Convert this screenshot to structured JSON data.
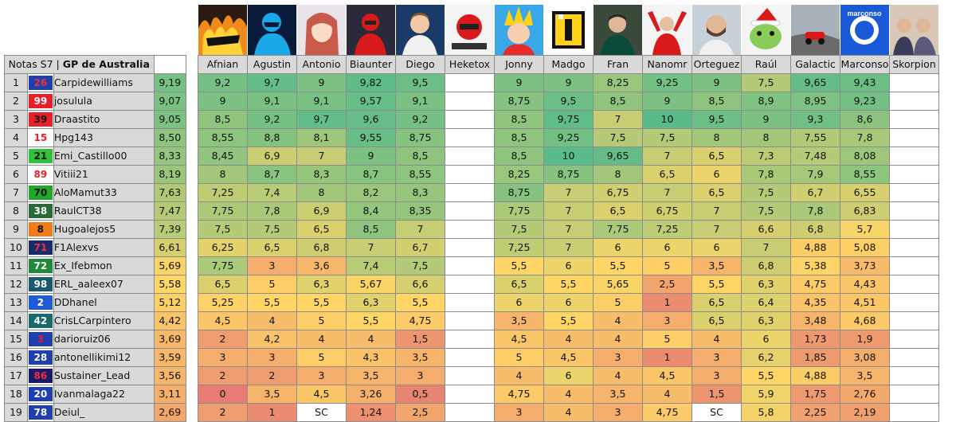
{
  "header_label_prefix": "Notas S7 | ",
  "header_label_gp": "GP de Australia",
  "judges": [
    "Afnian",
    "Agustin",
    "Antonio",
    "Biaunter",
    "Diego",
    "Heketox",
    "Jonny",
    "Madgo",
    "Fran",
    "Nanomr",
    "Orteguez",
    "Raúl",
    "Galactic",
    "Marconso",
    "Skorpion"
  ],
  "avatar_text": "marconso",
  "colors": {
    "header_bg": "#d9d9d9",
    "scale_low": "#e67c73",
    "scale_mid": "#ffd666",
    "scale_high": "#57bb8a"
  },
  "rows": [
    {
      "pos": "1",
      "num": "26",
      "num_bg": "#1f3fb0",
      "num_fg": "#e8343a",
      "name": "Carpidewilliams",
      "avg": "9,19",
      "scores": [
        "9,2",
        "9,7",
        "9",
        "9,82",
        "9,5",
        "",
        "9",
        "9",
        "8,25",
        "9,25",
        "9",
        "7,5",
        "9,65",
        "9,43",
        ""
      ]
    },
    {
      "pos": "2",
      "num": "99",
      "num_bg": "#e8202a",
      "num_fg": "#ffffff",
      "name": "josulula",
      "avg": "9,07",
      "scores": [
        "9",
        "9,1",
        "9,1",
        "9,57",
        "9,1",
        "",
        "8,75",
        "9,5",
        "8,5",
        "9",
        "8,5",
        "8,9",
        "8,95",
        "9,23",
        ""
      ]
    },
    {
      "pos": "3",
      "num": "39",
      "num_bg": "#e8202a",
      "num_fg": "#1a1a1a",
      "name": "Draastito",
      "avg": "9,05",
      "scores": [
        "8,5",
        "9,2",
        "9,7",
        "9,6",
        "9,2",
        "",
        "8,5",
        "9,75",
        "7",
        "10",
        "9,5",
        "9",
        "9,3",
        "8,6",
        ""
      ]
    },
    {
      "pos": "4",
      "num": "15",
      "num_bg": "#ffffff",
      "num_fg": "#e8202a",
      "name": "Hpg143",
      "avg": "8,50",
      "scores": [
        "8,55",
        "8,8",
        "8,1",
        "9,55",
        "8,75",
        "",
        "8,5",
        "9,25",
        "7,5",
        "7,5",
        "8",
        "8",
        "7,55",
        "7,8",
        ""
      ]
    },
    {
      "pos": "5",
      "num": "21",
      "num_bg": "#2fc23a",
      "num_fg": "#111111",
      "name": "Emi_Castillo00",
      "avg": "8,33",
      "scores": [
        "8,45",
        "6,9",
        "7",
        "9",
        "8,5",
        "",
        "8,5",
        "10",
        "9,65",
        "7",
        "6,5",
        "7,3",
        "7,48",
        "8,08",
        ""
      ]
    },
    {
      "pos": "6",
      "num": "89",
      "num_bg": "#ffffff",
      "num_fg": "#e8202a",
      "name": "Vitiii21",
      "avg": "8,19",
      "scores": [
        "8",
        "8,7",
        "8,3",
        "8,7",
        "8,55",
        "",
        "8,25",
        "8,75",
        "8",
        "6,5",
        "6",
        "7,8",
        "7,9",
        "8,55",
        ""
      ]
    },
    {
      "pos": "7",
      "num": "70",
      "num_bg": "#1fa82a",
      "num_fg": "#111111",
      "name": "AloMamut33",
      "avg": "7,63",
      "scores": [
        "7,25",
        "7,4",
        "8",
        "8,2",
        "8,3",
        "",
        "8,75",
        "7",
        "6,75",
        "7",
        "6,5",
        "7,5",
        "6,7",
        "6,55",
        ""
      ]
    },
    {
      "pos": "8",
      "num": "38",
      "num_bg": "#2a6a3a",
      "num_fg": "#ffffff",
      "name": "RaulCT38",
      "avg": "7,47",
      "scores": [
        "7,75",
        "7,8",
        "6,9",
        "8,4",
        "8,35",
        "",
        "7,75",
        "7",
        "6,5",
        "6,75",
        "7",
        "7,5",
        "7,8",
        "6,83",
        ""
      ]
    },
    {
      "pos": "9",
      "num": "8",
      "num_bg": "#f07d1a",
      "num_fg": "#111111",
      "name": "Hugoalejos5",
      "avg": "7,39",
      "scores": [
        "7,5",
        "7,5",
        "6,5",
        "8,5",
        "7",
        "",
        "7,5",
        "7",
        "7,75",
        "7,25",
        "7",
        "6,6",
        "6,8",
        "5,7",
        ""
      ]
    },
    {
      "pos": "10",
      "num": "71",
      "num_bg": "#1a2a6a",
      "num_fg": "#e8343a",
      "name": "F1Alexvs",
      "avg": "6,61",
      "scores": [
        "6,25",
        "6,5",
        "6,8",
        "7",
        "6,7",
        "",
        "7,25",
        "7",
        "6",
        "6",
        "6",
        "7",
        "4,88",
        "5,08",
        ""
      ]
    },
    {
      "pos": "11",
      "num": "72",
      "num_bg": "#1f8a3a",
      "num_fg": "#ffffff",
      "name": "Ex_Ifebmon",
      "avg": "5,69",
      "scores": [
        "7,75",
        "3",
        "3,6",
        "7,4",
        "7,5",
        "",
        "5,5",
        "6",
        "5,5",
        "5",
        "3,5",
        "6,8",
        "5,38",
        "3,73",
        ""
      ]
    },
    {
      "pos": "12",
      "num": "98",
      "num_bg": "#1a5a6a",
      "num_fg": "#ffffff",
      "name": "ERL_aaleex07",
      "avg": "5,58",
      "scores": [
        "6,5",
        "5",
        "6,3",
        "5,67",
        "6,6",
        "",
        "6,5",
        "5,5",
        "5,65",
        "2,5",
        "5,5",
        "6,3",
        "4,75",
        "4,43",
        ""
      ]
    },
    {
      "pos": "13",
      "num": "2",
      "num_bg": "#1f5ad8",
      "num_fg": "#ffffff",
      "name": "DDhanel",
      "avg": "5,12",
      "scores": [
        "5,25",
        "5,5",
        "5,5",
        "6,3",
        "5,5",
        "",
        "6",
        "6",
        "5",
        "1",
        "6,5",
        "6,4",
        "4,35",
        "4,51",
        ""
      ]
    },
    {
      "pos": "14",
      "num": "42",
      "num_bg": "#1a6a6a",
      "num_fg": "#ffffff",
      "name": "CrisLCarpintero",
      "avg": "4,42",
      "scores": [
        "4,5",
        "4",
        "5",
        "5,5",
        "4,75",
        "",
        "3,5",
        "5,5",
        "4",
        "3",
        "6,5",
        "6,3",
        "3,48",
        "4,68",
        ""
      ]
    },
    {
      "pos": "15",
      "num": "3",
      "num_bg": "#1f3fb0",
      "num_fg": "#e8202a",
      "name": "darioruiz06",
      "avg": "3,69",
      "scores": [
        "2",
        "4,2",
        "4",
        "4",
        "1,5",
        "",
        "4,5",
        "4",
        "4",
        "5",
        "4",
        "6",
        "1,73",
        "1,9",
        ""
      ]
    },
    {
      "pos": "16",
      "num": "28",
      "num_bg": "#1f3fb0",
      "num_fg": "#ffffff",
      "name": "antonellikimi12",
      "avg": "3,59",
      "scores": [
        "3",
        "3",
        "5",
        "4,3",
        "3,5",
        "",
        "5",
        "4,5",
        "3",
        "1",
        "3",
        "6,2",
        "1,85",
        "3,08",
        ""
      ]
    },
    {
      "pos": "17",
      "num": "86",
      "num_bg": "#1a1a6a",
      "num_fg": "#e8343a",
      "name": "Sustainer_Lead",
      "avg": "3,56",
      "scores": [
        "2",
        "2",
        "3",
        "3,5",
        "3",
        "",
        "4",
        "6",
        "4",
        "4,5",
        "3",
        "5,5",
        "4,88",
        "3,5",
        ""
      ]
    },
    {
      "pos": "18",
      "num": "20",
      "num_bg": "#1f3fb0",
      "num_fg": "#ffffff",
      "name": "Ivanmalaga22",
      "avg": "3,11",
      "scores": [
        "0",
        "3,5",
        "4,5",
        "3,26",
        "0,5",
        "",
        "4,75",
        "4",
        "3,5",
        "4",
        "1,5",
        "5,9",
        "1,75",
        "2,76",
        ""
      ]
    },
    {
      "pos": "19",
      "num": "78",
      "num_bg": "#1f3fb0",
      "num_fg": "#ffffff",
      "name": "Deiul_",
      "avg": "2,69",
      "scores": [
        "2",
        "1",
        "SC",
        "1,24",
        "2,5",
        "",
        "3",
        "4",
        "3",
        "4,75",
        "SC",
        "5,8",
        "2,25",
        "2,19",
        ""
      ]
    }
  ]
}
